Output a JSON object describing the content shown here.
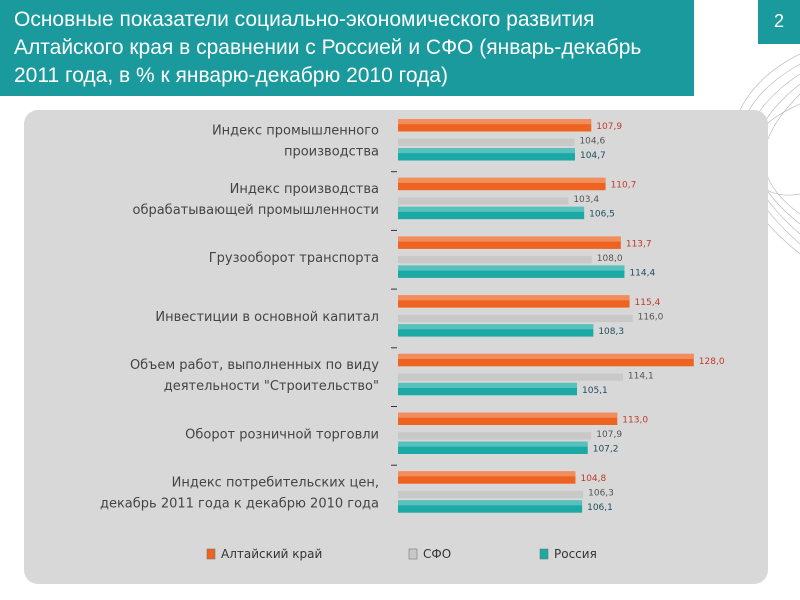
{
  "slide": {
    "title": "Основные показатели социально-экономического развития Алтайского края в сравнении с Россией и СФО (январь-декабрь 2011 года, в % к январю-декабрю 2010 года)",
    "page_number": "2"
  },
  "colors": {
    "header": "#1a9a9c",
    "panel": "#d8d8d8",
    "altai": "#ee6320",
    "sfo": "#c8c8c8",
    "russia": "#1aa9a4"
  },
  "chart_data": {
    "type": "bar",
    "orientation": "horizontal",
    "categories": [
      [
        "Индекс промышленного",
        "производства"
      ],
      [
        "Индекс производства",
        "обрабатывающей промышленности"
      ],
      [
        "Грузооборот транспорта"
      ],
      [
        "Инвестиции в основной капитал"
      ],
      [
        "Объем работ, выполненных по виду",
        "деятельности \"Строительство\""
      ],
      [
        "Оборот розничной торговли"
      ],
      [
        "Индекс потребительских цен,",
        "декабрь 2011 года к декабрю 2010 года"
      ]
    ],
    "series": [
      {
        "name": "Алтайский край",
        "color": "#ee6320",
        "label_color": "#c0392b",
        "values": [
          107.9,
          110.7,
          113.7,
          115.4,
          128.0,
          113.0,
          104.8
        ],
        "labels": [
          "107,9",
          "110,7",
          "113,7",
          "115,4",
          "128,0",
          "113,0",
          "104,8"
        ]
      },
      {
        "name": "СФО",
        "color": "#c8c8c8",
        "label_color": "#555555",
        "values": [
          104.6,
          103.4,
          108.0,
          116.0,
          114.1,
          107.9,
          106.3
        ],
        "labels": [
          "104,6",
          "103,4",
          "108,0",
          "116,0",
          "114,1",
          "107,9",
          "106,3"
        ]
      },
      {
        "name": "Россия",
        "color": "#1aa9a4",
        "label_color": "#1f4e5f",
        "values": [
          104.7,
          106.5,
          114.4,
          108.3,
          105.1,
          107.2,
          106.1
        ],
        "labels": [
          "104,7",
          "106,5",
          "114,4",
          "108,3",
          "105,1",
          "107,2",
          "106,1"
        ]
      }
    ],
    "xlim": [
      70,
      130
    ],
    "grid": false,
    "legend_position": "bottom"
  }
}
